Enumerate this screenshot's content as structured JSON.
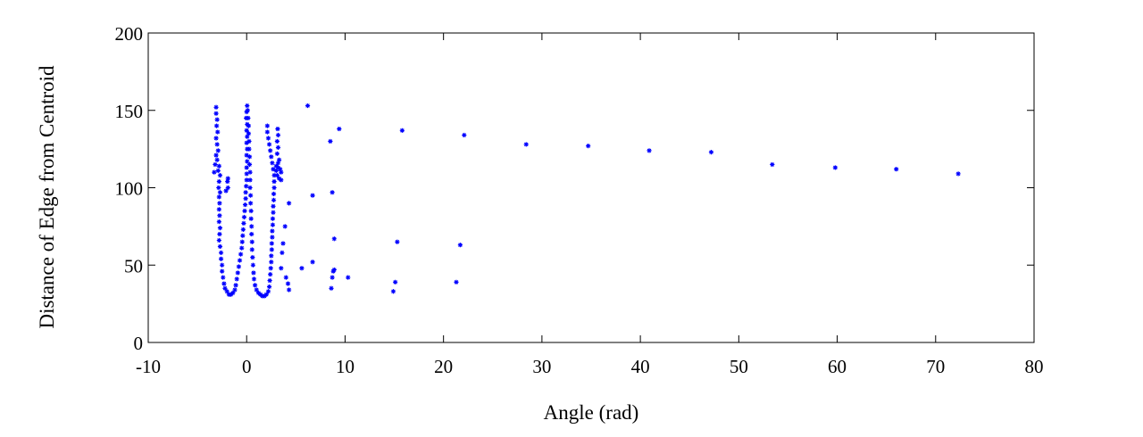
{
  "chart_data": {
    "type": "scatter",
    "title": "",
    "xlabel": "Angle (rad)",
    "ylabel": "Distance of Edge from Centroid",
    "xlim": [
      -10,
      80
    ],
    "ylim": [
      0,
      200
    ],
    "xticks": [
      -10,
      0,
      10,
      20,
      30,
      40,
      50,
      60,
      70,
      80
    ],
    "yticks": [
      0,
      50,
      100,
      150,
      200
    ],
    "grid": false,
    "legend": "none",
    "marker": "asterisk",
    "color": "#0000ff",
    "series": [
      {
        "points": [
          [
            -3.1,
            152
          ],
          [
            -3.1,
            148
          ],
          [
            -3.0,
            144
          ],
          [
            -3.05,
            140
          ],
          [
            -2.95,
            136
          ],
          [
            -3.1,
            132
          ],
          [
            -3.0,
            128
          ],
          [
            -2.9,
            124
          ],
          [
            -3.1,
            121
          ],
          [
            -3.0,
            118
          ],
          [
            -2.8,
            114
          ],
          [
            -2.9,
            111
          ],
          [
            -2.7,
            108
          ],
          [
            -2.8,
            104
          ],
          [
            -2.85,
            100
          ],
          [
            -2.7,
            97
          ],
          [
            -2.8,
            94
          ],
          [
            -2.75,
            90
          ],
          [
            -2.8,
            86
          ],
          [
            -2.75,
            82
          ],
          [
            -2.8,
            78
          ],
          [
            -2.7,
            74
          ],
          [
            -2.75,
            70
          ],
          [
            -2.8,
            66
          ],
          [
            -2.7,
            62
          ],
          [
            -2.6,
            58
          ],
          [
            -2.6,
            54
          ],
          [
            -2.5,
            50
          ],
          [
            -2.5,
            46
          ],
          [
            -2.4,
            42
          ],
          [
            -2.3,
            38
          ],
          [
            -2.2,
            35
          ],
          [
            -2.0,
            33
          ],
          [
            -1.8,
            31
          ],
          [
            -1.6,
            31
          ],
          [
            -1.4,
            32
          ],
          [
            -1.2,
            34
          ],
          [
            -1.1,
            37
          ],
          [
            -1.0,
            41
          ],
          [
            -0.9,
            45
          ],
          [
            -0.8,
            49
          ],
          [
            -0.7,
            53
          ],
          [
            -0.6,
            57
          ],
          [
            -0.5,
            61
          ],
          [
            -0.45,
            65
          ],
          [
            -0.4,
            69
          ],
          [
            -0.35,
            73
          ],
          [
            -0.3,
            77
          ],
          [
            -0.25,
            81
          ],
          [
            -0.2,
            85
          ],
          [
            -0.15,
            89
          ],
          [
            -0.1,
            93
          ],
          [
            -0.1,
            97
          ],
          [
            -0.05,
            101
          ],
          [
            0.0,
            105
          ],
          [
            0.0,
            109
          ],
          [
            0.0,
            113
          ],
          [
            0.05,
            117
          ],
          [
            0.0,
            121
          ],
          [
            0.05,
            125
          ],
          [
            0.0,
            129
          ],
          [
            0.05,
            133
          ],
          [
            0.0,
            137
          ],
          [
            0.05,
            141
          ],
          [
            -0.05,
            145
          ],
          [
            0.0,
            149
          ],
          [
            0.05,
            153
          ],
          [
            0.1,
            150
          ],
          [
            0.15,
            145
          ],
          [
            0.2,
            140
          ],
          [
            0.2,
            135
          ],
          [
            0.25,
            130
          ],
          [
            0.25,
            125
          ],
          [
            0.3,
            120
          ],
          [
            0.3,
            115
          ],
          [
            0.35,
            110
          ],
          [
            0.35,
            105
          ],
          [
            0.35,
            100
          ],
          [
            0.4,
            95
          ],
          [
            0.4,
            90
          ],
          [
            0.45,
            85
          ],
          [
            0.45,
            80
          ],
          [
            0.5,
            75
          ],
          [
            0.5,
            70
          ],
          [
            0.55,
            65
          ],
          [
            0.55,
            60
          ],
          [
            0.6,
            55
          ],
          [
            0.65,
            50
          ],
          [
            0.7,
            45
          ],
          [
            0.75,
            41
          ],
          [
            0.85,
            37
          ],
          [
            1.0,
            34
          ],
          [
            1.2,
            32
          ],
          [
            1.4,
            31
          ],
          [
            1.6,
            30
          ],
          [
            1.8,
            30
          ],
          [
            2.0,
            31
          ],
          [
            2.2,
            33
          ],
          [
            2.3,
            36
          ],
          [
            2.35,
            40
          ],
          [
            2.4,
            44
          ],
          [
            2.45,
            48
          ],
          [
            2.5,
            52
          ],
          [
            2.5,
            56
          ],
          [
            2.55,
            60
          ],
          [
            2.55,
            64
          ],
          [
            2.6,
            68
          ],
          [
            2.6,
            72
          ],
          [
            2.65,
            76
          ],
          [
            2.65,
            80
          ],
          [
            2.7,
            84
          ],
          [
            2.7,
            88
          ],
          [
            2.75,
            92
          ],
          [
            2.75,
            96
          ],
          [
            2.8,
            100
          ],
          [
            2.8,
            104
          ],
          [
            2.8,
            108
          ],
          [
            2.7,
            112
          ],
          [
            2.6,
            116
          ],
          [
            2.5,
            120
          ],
          [
            2.4,
            124
          ],
          [
            2.3,
            128
          ],
          [
            2.2,
            132
          ],
          [
            2.1,
            136
          ],
          [
            2.1,
            140
          ],
          [
            -1.9,
            100
          ],
          [
            -1.95,
            104
          ],
          [
            -1.9,
            106
          ],
          [
            -2.1,
            98
          ],
          [
            -3.3,
            110
          ],
          [
            -3.2,
            115
          ],
          [
            3.0,
            111
          ],
          [
            3.2,
            113
          ],
          [
            3.4,
            112
          ],
          [
            3.5,
            110
          ],
          [
            3.1,
            108
          ],
          [
            3.3,
            106
          ],
          [
            3.0,
            114
          ],
          [
            3.2,
            116
          ],
          [
            3.3,
            118
          ],
          [
            3.1,
            122
          ],
          [
            3.2,
            126
          ],
          [
            3.1,
            130
          ],
          [
            3.2,
            134
          ],
          [
            3.15,
            138
          ],
          [
            3.5,
            105
          ],
          [
            6.2,
            153
          ],
          [
            4.3,
            90
          ],
          [
            3.9,
            75
          ],
          [
            3.7,
            64
          ],
          [
            3.6,
            58
          ],
          [
            3.5,
            48
          ],
          [
            4.0,
            42
          ],
          [
            4.2,
            38
          ],
          [
            4.3,
            34
          ],
          [
            5.6,
            48
          ],
          [
            6.7,
            52
          ],
          [
            6.7,
            95
          ],
          [
            8.5,
            130
          ],
          [
            9.4,
            138
          ],
          [
            8.7,
            97
          ],
          [
            8.9,
            67
          ],
          [
            8.9,
            47
          ],
          [
            8.8,
            46
          ],
          [
            8.7,
            42
          ],
          [
            8.6,
            35
          ],
          [
            10.3,
            42
          ],
          [
            14.9,
            33
          ],
          [
            15.1,
            39
          ],
          [
            15.3,
            65
          ],
          [
            15.8,
            137
          ],
          [
            21.3,
            39
          ],
          [
            21.7,
            63
          ],
          [
            22.1,
            134
          ],
          [
            28.4,
            128
          ],
          [
            34.7,
            127
          ],
          [
            40.9,
            124
          ],
          [
            47.2,
            123
          ],
          [
            53.4,
            115
          ],
          [
            59.8,
            113
          ],
          [
            66.0,
            112
          ],
          [
            72.3,
            109
          ]
        ]
      }
    ]
  }
}
